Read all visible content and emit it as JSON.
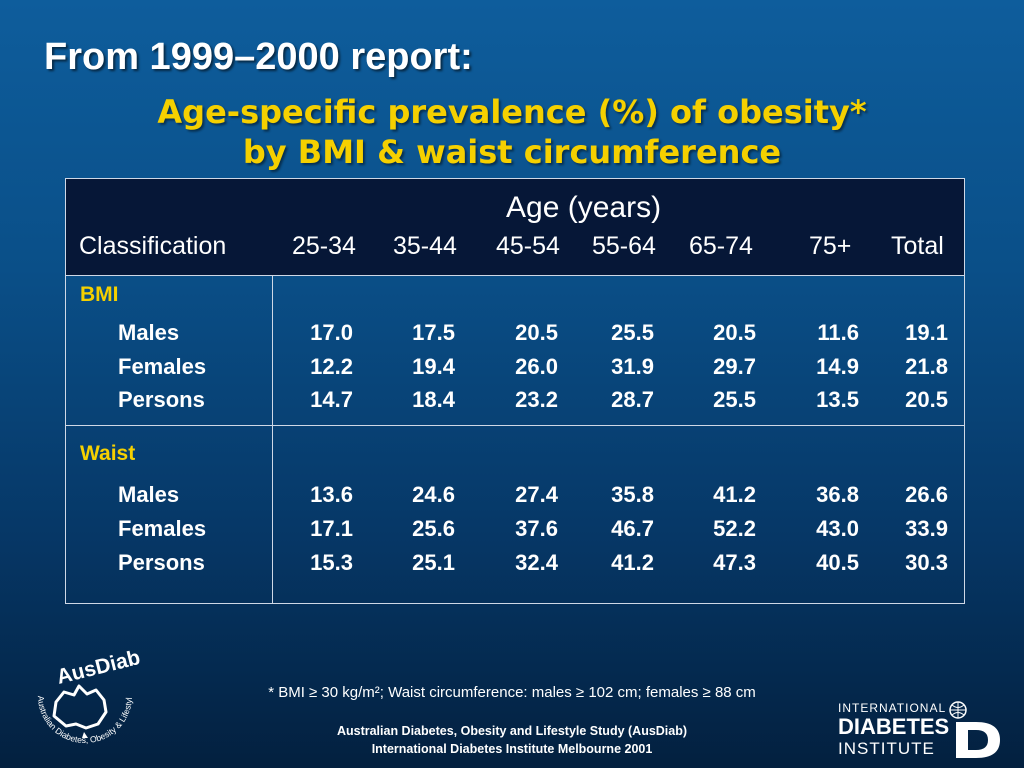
{
  "slide": {
    "title": "From 1999–2000 report:",
    "subtitle_line1": "Age-specific prevalence (%) of obesity*",
    "subtitle_line2": "by BMI & waist circumference"
  },
  "table": {
    "age_header": "Age (years)",
    "columns": [
      "Classification",
      "25-34",
      "35-44",
      "45-54",
      "55-64",
      "65-74",
      "75+",
      "Total"
    ],
    "sections": [
      {
        "label": "BMI",
        "rows": [
          {
            "label": "Males",
            "values": [
              "17.0",
              "17.5",
              "20.5",
              "25.5",
              "20.5",
              "11.6",
              "19.1"
            ]
          },
          {
            "label": "Females",
            "values": [
              "12.2",
              "19.4",
              "26.0",
              "31.9",
              "29.7",
              "14.9",
              "21.8"
            ]
          },
          {
            "label": "Persons",
            "values": [
              "14.7",
              "18.4",
              "23.2",
              "28.7",
              "25.5",
              "13.5",
              "20.5"
            ]
          }
        ]
      },
      {
        "label": "Waist",
        "rows": [
          {
            "label": "Males",
            "values": [
              "13.6",
              "24.6",
              "27.4",
              "35.8",
              "41.2",
              "36.8",
              "26.6"
            ]
          },
          {
            "label": "Females",
            "values": [
              "17.1",
              "25.6",
              "37.6",
              "46.7",
              "52.2",
              "43.0",
              "33.9"
            ]
          },
          {
            "label": "Persons",
            "values": [
              "15.3",
              "25.1",
              "32.4",
              "41.2",
              "47.3",
              "40.5",
              "30.3"
            ]
          }
        ]
      }
    ]
  },
  "footnote": "* BMI ≥ 30 kg/m²; Waist circumference: males ≥ 102 cm; females ≥ 88 cm",
  "credits": {
    "line1": "Australian Diabetes, Obesity and Lifestyle Study (AusDiab)",
    "line2": "International Diabetes Institute Melbourne 2001"
  },
  "logos": {
    "ausdiab_name": "AusDiab",
    "ausdiab_ring_text": "Australian Diabetes, Obesity & Lifestyle Study",
    "idi_line1": "INTERNATIONAL",
    "idi_line2": "DIABETES",
    "idi_line3": "INSTITUTE"
  },
  "colors": {
    "accent_yellow": "#f5d000",
    "header_navy": "#061737",
    "background_blue": "#0a4f88"
  }
}
